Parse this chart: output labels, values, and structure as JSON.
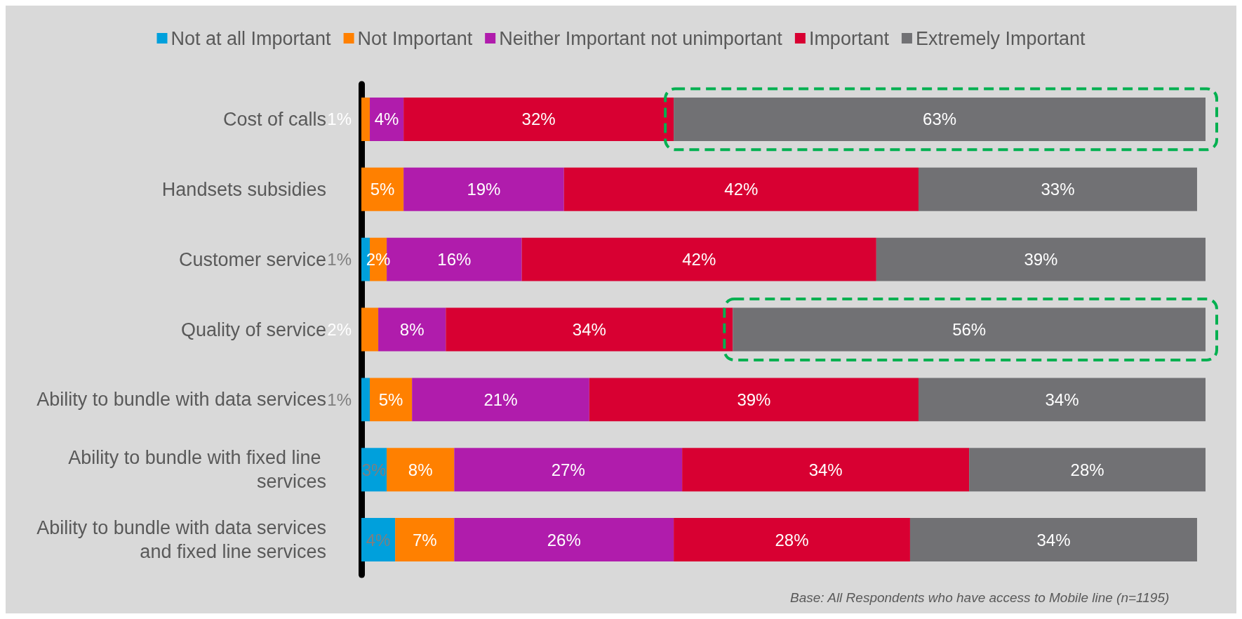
{
  "chart_data": {
    "type": "bar",
    "orientation": "horizontal",
    "stacked": true,
    "categories": [
      "Cost of calls",
      "Handsets subsidies",
      "Customer service",
      "Quality of service",
      "Ability to bundle with data services",
      "Ability to bundle with fixed line services",
      "Ability to bundle with data services and fixed line services"
    ],
    "series": [
      {
        "name": "Not at all Important",
        "color": "#00a0dc",
        "values": [
          null,
          null,
          1,
          null,
          1,
          3,
          4
        ],
        "value_labels": [
          null,
          null,
          "1%",
          null,
          "1%",
          "3%",
          "4%"
        ]
      },
      {
        "name": "Not Important",
        "color": "#ff8000",
        "values": [
          1,
          5,
          2,
          2,
          5,
          8,
          7
        ],
        "value_labels": [
          "1%",
          "5%",
          "2%",
          "2%",
          "5%",
          "8%",
          "7%"
        ]
      },
      {
        "name": "Neither Important not unimportant",
        "color": "#b01cac",
        "values": [
          4,
          19,
          16,
          8,
          21,
          27,
          26
        ],
        "value_labels": [
          "4%",
          "19%",
          "16%",
          "8%",
          "21%",
          "27%",
          "26%"
        ]
      },
      {
        "name": "Important",
        "color": "#d80032",
        "values": [
          32,
          42,
          42,
          34,
          39,
          34,
          28
        ],
        "value_labels": [
          "32%",
          "42%",
          "42%",
          "34%",
          "39%",
          "34%",
          "28%"
        ]
      },
      {
        "name": "Extremely Important",
        "color": "#717174",
        "values": [
          63,
          33,
          39,
          56,
          34,
          28,
          34
        ],
        "value_labels": [
          "63%",
          "33%",
          "39%",
          "56%",
          "34%",
          "28%",
          "34%"
        ]
      }
    ],
    "xlim": [
      0,
      100
    ],
    "tick_labels": "y",
    "legend": "top",
    "annotations": [
      "Base: All Respondents who have access to Mobile line (n=1195)"
    ]
  }
}
